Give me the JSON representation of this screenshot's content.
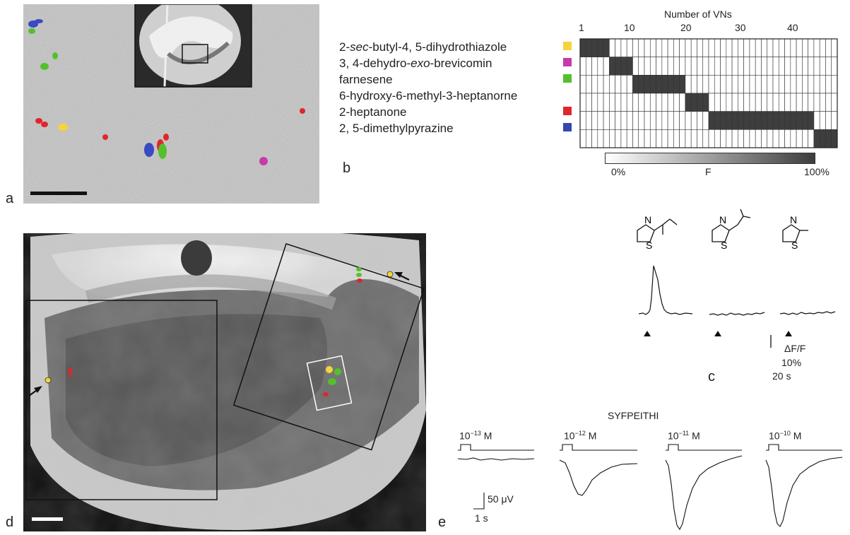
{
  "panels": {
    "a": "a",
    "b": "b",
    "c": "c",
    "d": "d",
    "e": "e"
  },
  "panel_b": {
    "axis_title": "Number of VNs",
    "axis_ticks": [
      "1",
      "10",
      "20",
      "30",
      "40"
    ],
    "odorants": [
      {
        "pre": "2-",
        "italic": "sec",
        "post": "-butyl-4, 5-dihydrothiazole",
        "color": "#f5d33a"
      },
      {
        "pre": "3, 4-dehydro-",
        "italic": "exo",
        "post": "-brevicomin",
        "color": "#c93aa8"
      },
      {
        "pre": "farnesene",
        "italic": "",
        "post": "",
        "color": "#55c02d"
      },
      {
        "pre": "6-hydroxy-6-methyl-3-heptanorne",
        "italic": "",
        "post": "",
        "color": ""
      },
      {
        "pre": "2-heptanone",
        "italic": "",
        "post": "",
        "color": "#e0262b"
      },
      {
        "pre": "2, 5-dimethylpyrazine",
        "italic": "",
        "post": "",
        "color": "#3248b0"
      }
    ],
    "grid": {
      "columns": 44,
      "filled_ranges": [
        [
          1,
          5
        ],
        [
          6,
          9
        ],
        [
          10,
          18
        ],
        [
          19,
          22
        ],
        [
          23,
          40
        ],
        [
          41,
          44
        ]
      ]
    },
    "colorbar": {
      "min": "0%",
      "mid": "F",
      "max": "100%"
    }
  },
  "panel_c": {
    "scale_y": "ΔF/F",
    "scale_y_value": "10%",
    "scale_x": "20 s"
  },
  "panel_e": {
    "title": "SYFPEITHI",
    "concentrations": [
      {
        "base": "10",
        "exp": "−13",
        "unit": " M"
      },
      {
        "base": "10",
        "exp": "−12",
        "unit": " M"
      },
      {
        "base": "10",
        "exp": "−11",
        "unit": " M"
      },
      {
        "base": "10",
        "exp": "−10",
        "unit": " M"
      }
    ],
    "scale_y": "50 μV",
    "scale_x": "1 s"
  }
}
